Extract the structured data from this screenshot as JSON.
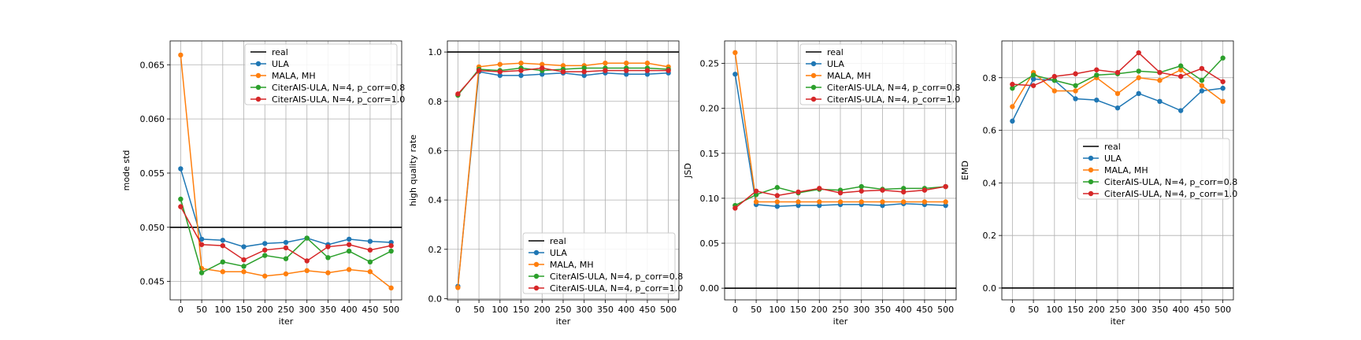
{
  "colors": {
    "real": "#000000",
    "ULA": "#1f77b4",
    "MALA, MH": "#ff7f0e",
    "CiterAIS-ULA, N=4, p_corr=0.8": "#2ca02c",
    "CiterAIS-ULA, N=4, p_corr=1.0": "#d62728",
    "grid": "#b0b0b0"
  },
  "chart_data": [
    {
      "type": "line",
      "title": "",
      "xlabel": "iter",
      "ylabel": "mode std",
      "xlim": [
        -25,
        525
      ],
      "ylim": [
        0.0433,
        0.0672
      ],
      "xticks": [
        0,
        50,
        100,
        150,
        200,
        250,
        300,
        350,
        400,
        450,
        500
      ],
      "yticks": [
        0.045,
        0.05,
        0.055,
        0.06,
        0.065
      ],
      "ytick_labels": [
        "0.045",
        "0.050",
        "0.055",
        "0.060",
        "0.065"
      ],
      "grid": true,
      "legend_position": "upper right",
      "x": [
        0,
        50,
        100,
        150,
        200,
        250,
        300,
        350,
        400,
        450,
        500
      ],
      "reference": {
        "name": "real",
        "value": 0.05
      },
      "series": [
        {
          "name": "ULA",
          "values": [
            0.0554,
            0.0489,
            0.0488,
            0.0482,
            0.0485,
            0.0486,
            0.049,
            0.0484,
            0.0489,
            0.0487,
            0.0486
          ]
        },
        {
          "name": "MALA, MH",
          "values": [
            0.0659,
            0.0462,
            0.0459,
            0.0459,
            0.0455,
            0.0457,
            0.046,
            0.0458,
            0.0461,
            0.0459,
            0.0444
          ]
        },
        {
          "name": "CiterAIS-ULA, N=4, p_corr=0.8",
          "values": [
            0.0526,
            0.0458,
            0.0468,
            0.0464,
            0.0474,
            0.0471,
            0.049,
            0.0472,
            0.0478,
            0.0468,
            0.0478
          ]
        },
        {
          "name": "CiterAIS-ULA, N=4, p_corr=1.0",
          "values": [
            0.0519,
            0.0484,
            0.0483,
            0.047,
            0.0479,
            0.0481,
            0.0469,
            0.0482,
            0.0484,
            0.0479,
            0.0483
          ]
        }
      ]
    },
    {
      "type": "line",
      "title": "",
      "xlabel": "iter",
      "ylabel": "high quality rate",
      "xlim": [
        -25,
        525
      ],
      "ylim": [
        -0.005,
        1.045
      ],
      "xticks": [
        0,
        50,
        100,
        150,
        200,
        250,
        300,
        350,
        400,
        450,
        500
      ],
      "yticks": [
        0.0,
        0.2,
        0.4,
        0.6,
        0.8,
        1.0
      ],
      "ytick_labels": [
        "0.0",
        "0.2",
        "0.4",
        "0.6",
        "0.8",
        "1.0"
      ],
      "grid": true,
      "legend_position": "lower right",
      "x": [
        0,
        50,
        100,
        150,
        200,
        250,
        300,
        350,
        400,
        450,
        500
      ],
      "reference": {
        "name": "real",
        "value": 1.0
      },
      "series": [
        {
          "name": "ULA",
          "values": [
            0.05,
            0.92,
            0.905,
            0.905,
            0.91,
            0.915,
            0.905,
            0.915,
            0.91,
            0.91,
            0.915
          ]
        },
        {
          "name": "MALA, MH",
          "values": [
            0.045,
            0.94,
            0.95,
            0.955,
            0.95,
            0.945,
            0.945,
            0.955,
            0.955,
            0.955,
            0.94
          ]
        },
        {
          "name": "CiterAIS-ULA, N=4, p_corr=0.8",
          "values": [
            0.825,
            0.93,
            0.925,
            0.935,
            0.925,
            0.93,
            0.935,
            0.935,
            0.935,
            0.935,
            0.93
          ]
        },
        {
          "name": "CiterAIS-ULA, N=4, p_corr=1.0",
          "values": [
            0.83,
            0.925,
            0.92,
            0.925,
            0.935,
            0.92,
            0.92,
            0.925,
            0.925,
            0.925,
            0.925
          ]
        }
      ]
    },
    {
      "type": "line",
      "title": "",
      "xlabel": "iter",
      "ylabel": "JSD",
      "xlim": [
        -25,
        525
      ],
      "ylim": [
        -0.013,
        0.275
      ],
      "xticks": [
        0,
        50,
        100,
        150,
        200,
        250,
        300,
        350,
        400,
        450,
        500
      ],
      "yticks": [
        0.0,
        0.05,
        0.1,
        0.15,
        0.2,
        0.25
      ],
      "ytick_labels": [
        "0.00",
        "0.05",
        "0.10",
        "0.15",
        "0.20",
        "0.25"
      ],
      "grid": true,
      "legend_position": "upper right",
      "x": [
        0,
        50,
        100,
        150,
        200,
        250,
        300,
        350,
        400,
        450,
        500
      ],
      "reference": {
        "name": "real",
        "value": 0.0
      },
      "series": [
        {
          "name": "ULA",
          "values": [
            0.238,
            0.093,
            0.091,
            0.092,
            0.092,
            0.093,
            0.093,
            0.092,
            0.094,
            0.093,
            0.092
          ]
        },
        {
          "name": "MALA, MH",
          "values": [
            0.262,
            0.096,
            0.096,
            0.096,
            0.096,
            0.096,
            0.096,
            0.096,
            0.096,
            0.096,
            0.096
          ]
        },
        {
          "name": "CiterAIS-ULA, N=4, p_corr=0.8",
          "values": [
            0.092,
            0.104,
            0.112,
            0.106,
            0.11,
            0.109,
            0.113,
            0.11,
            0.111,
            0.111,
            0.113
          ]
        },
        {
          "name": "CiterAIS-ULA, N=4, p_corr=1.0",
          "values": [
            0.089,
            0.108,
            0.103,
            0.107,
            0.111,
            0.106,
            0.108,
            0.109,
            0.107,
            0.109,
            0.113
          ]
        }
      ]
    },
    {
      "type": "line",
      "title": "",
      "xlabel": "iter",
      "ylabel": "EMD",
      "xlim": [
        -25,
        525
      ],
      "ylim": [
        -0.045,
        0.94
      ],
      "xticks": [
        0,
        50,
        100,
        150,
        200,
        250,
        300,
        350,
        400,
        450,
        500
      ],
      "yticks": [
        0.0,
        0.2,
        0.4,
        0.6,
        0.8
      ],
      "ytick_labels": [
        "0.0",
        "0.2",
        "0.4",
        "0.6",
        "0.8"
      ],
      "grid": true,
      "legend_position": "center right",
      "x": [
        0,
        50,
        100,
        150,
        200,
        250,
        300,
        350,
        400,
        450,
        500
      ],
      "reference": {
        "name": "real",
        "value": 0.0
      },
      "series": [
        {
          "name": "ULA",
          "values": [
            0.635,
            0.795,
            0.79,
            0.72,
            0.715,
            0.685,
            0.74,
            0.71,
            0.675,
            0.75,
            0.76
          ]
        },
        {
          "name": "MALA, MH",
          "values": [
            0.69,
            0.82,
            0.75,
            0.75,
            0.8,
            0.74,
            0.8,
            0.79,
            0.83,
            0.77,
            0.71
          ]
        },
        {
          "name": "CiterAIS-ULA, N=4, p_corr=0.8",
          "values": [
            0.76,
            0.81,
            0.79,
            0.77,
            0.81,
            0.815,
            0.825,
            0.82,
            0.845,
            0.79,
            0.875
          ]
        },
        {
          "name": "CiterAIS-ULA, N=4, p_corr=1.0",
          "values": [
            0.775,
            0.77,
            0.805,
            0.815,
            0.83,
            0.82,
            0.895,
            0.82,
            0.805,
            0.835,
            0.785
          ]
        }
      ]
    }
  ]
}
